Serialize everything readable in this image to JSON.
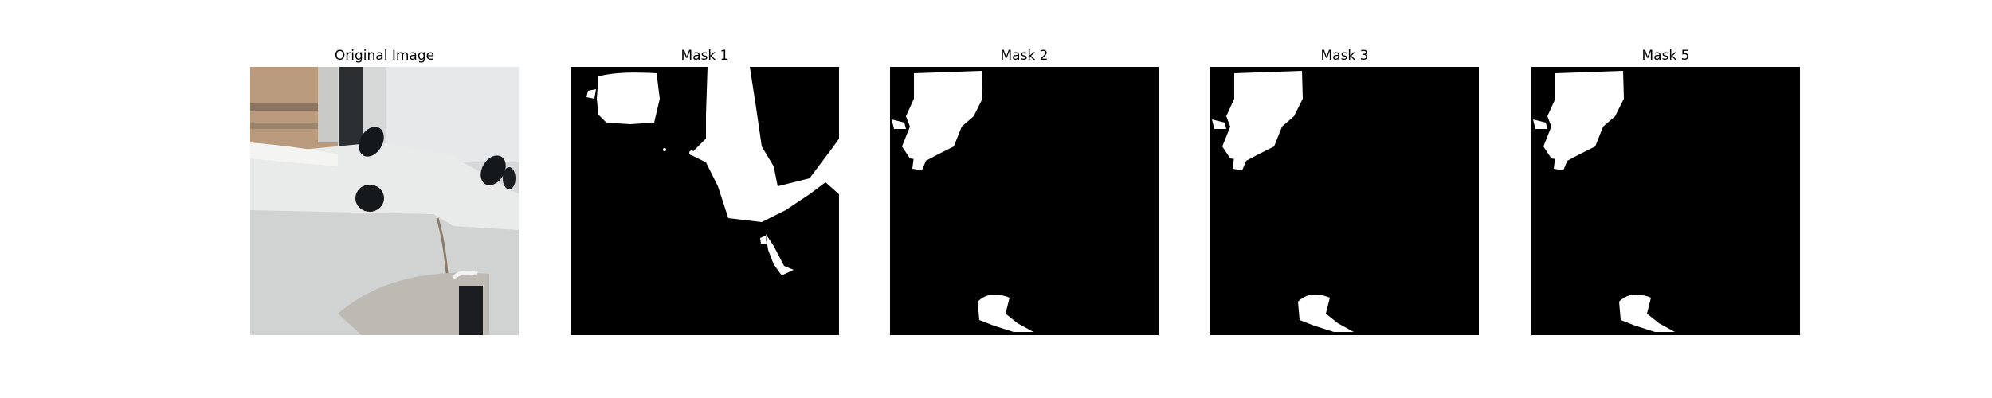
{
  "figure": {
    "panels": [
      {
        "title": "Original Image"
      },
      {
        "title": "Mask 1"
      },
      {
        "title": "Mask 2"
      },
      {
        "title": "Mask 3"
      },
      {
        "title": "Mask 5"
      }
    ]
  },
  "colors": {
    "background": "#ffffff",
    "mask_foreground": "#ffffff",
    "mask_background": "#000000"
  }
}
